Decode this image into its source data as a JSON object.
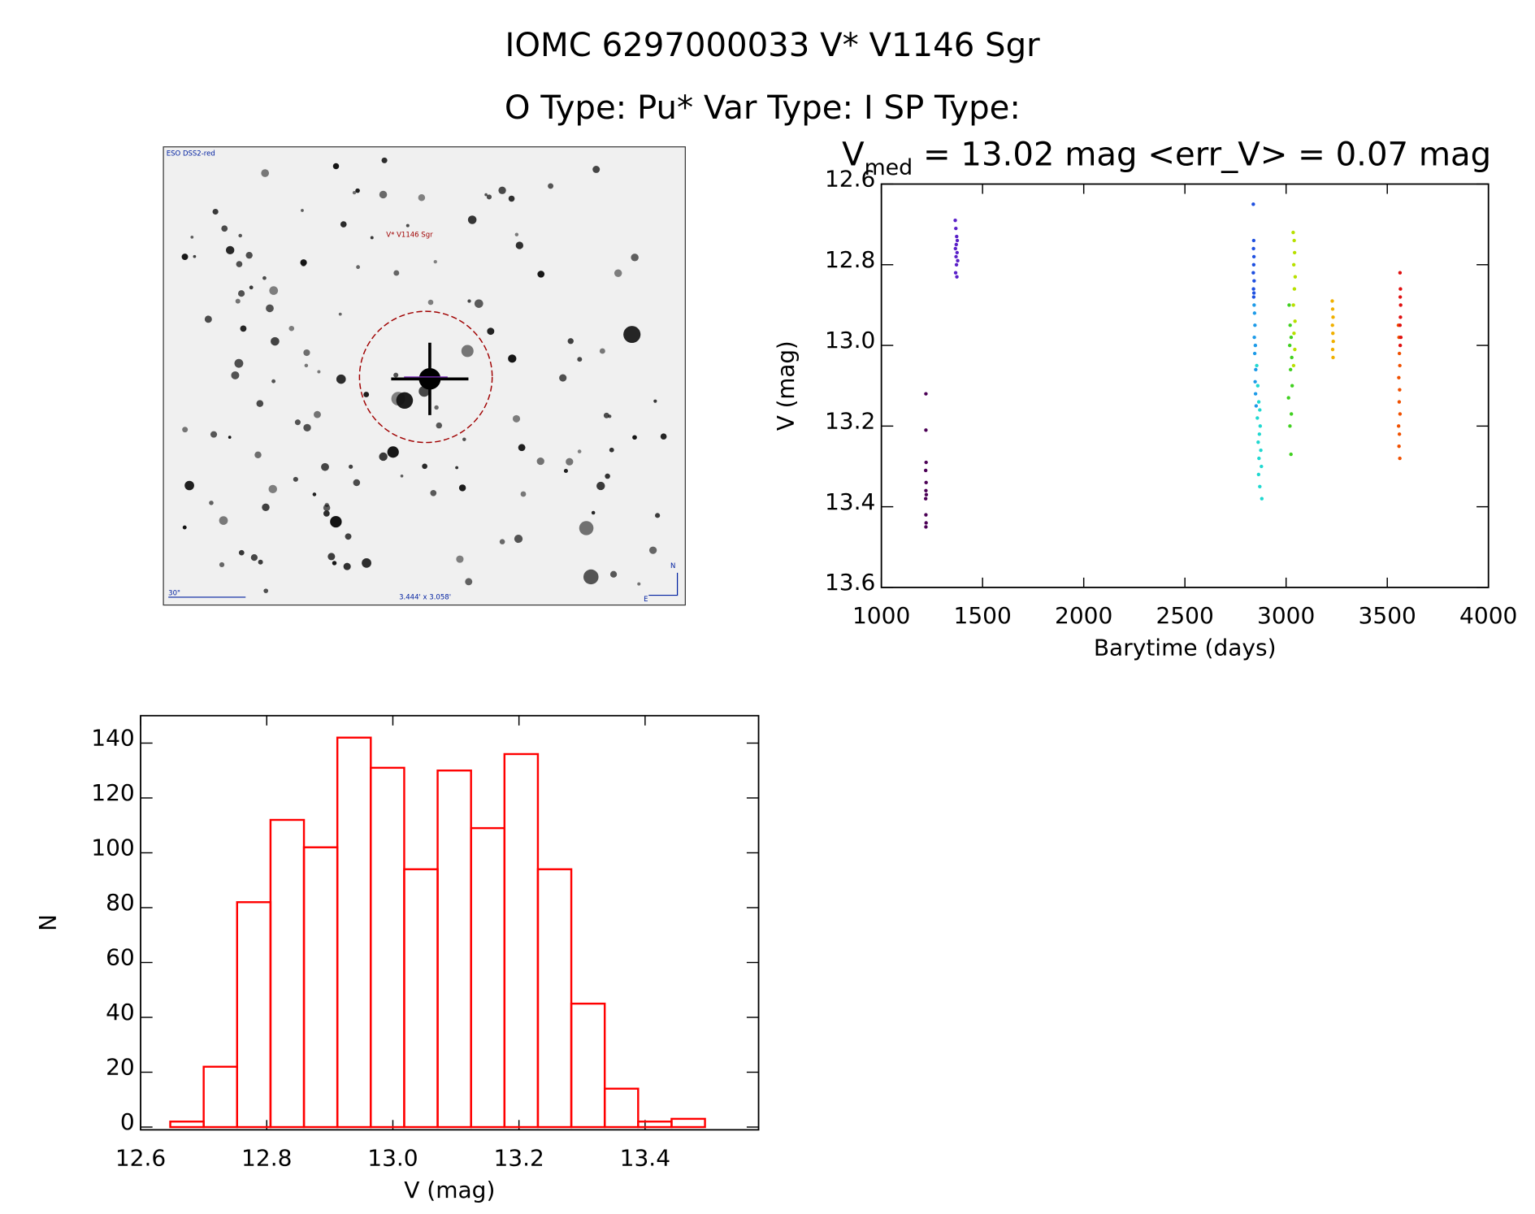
{
  "header": {
    "title": "IOMC 6297000033   V* V1146 Sgr",
    "subtitle": "O Type: Pu*  Var Type: I  SP Type:"
  },
  "image": {
    "survey": "ESO DSS2-red",
    "target": "V* V1146 Sgr",
    "scale": "30\"",
    "size": "3.444' x 3.058'",
    "north": "N",
    "east": "E"
  },
  "chart_data": [
    {
      "type": "scatter",
      "title_parts": [
        "V",
        "med",
        " = 13.02 mag <err_V> = 0.07 mag"
      ],
      "xlabel": "Barytime (days)",
      "ylabel": "V (mag)",
      "xlim": [
        1000,
        4000
      ],
      "xticks": [
        1000,
        1500,
        2000,
        2500,
        3000,
        3500,
        4000
      ],
      "ylim": [
        12.6,
        13.6
      ],
      "y_inverted": true,
      "yticks": [
        12.6,
        12.8,
        {
          "value": 13,
          "label": "13.0"
        },
        13.2,
        13.4,
        13.6
      ],
      "series": [
        {
          "color": "#4b0055",
          "x": [
            1220,
            1220,
            1221,
            1219,
            1221,
            1220,
            1222,
            1219,
            1220,
            1221,
            1220
          ],
          "values": [
            13.12,
            13.21,
            13.29,
            13.31,
            13.34,
            13.36,
            13.37,
            13.38,
            13.42,
            13.44,
            13.45
          ]
        },
        {
          "color": "#5a20c8",
          "x": [
            1365,
            1368,
            1372,
            1375,
            1370,
            1366,
            1374,
            1369,
            1377,
            1371,
            1367,
            1373
          ],
          "values": [
            12.69,
            12.71,
            12.73,
            12.74,
            12.75,
            12.76,
            12.77,
            12.78,
            12.79,
            12.8,
            12.82,
            12.83
          ]
        },
        {
          "color": "#1f50e0",
          "x": [
            2838,
            2840,
            2839,
            2841,
            2840,
            2838,
            2842,
            2839,
            2841,
            2840
          ],
          "values": [
            12.65,
            12.74,
            12.76,
            12.78,
            12.8,
            12.82,
            12.84,
            12.86,
            12.87,
            12.88
          ]
        },
        {
          "color": "#1e9be8",
          "x": [
            2842,
            2844,
            2846,
            2843,
            2848,
            2845,
            2850,
            2847,
            2849,
            2852
          ],
          "values": [
            12.9,
            12.92,
            12.95,
            12.98,
            13.0,
            13.02,
            13.06,
            13.09,
            13.12,
            13.15
          ]
        },
        {
          "color": "#20d8d0",
          "x": [
            2855,
            2860,
            2865,
            2870,
            2858,
            2872,
            2868,
            2862,
            2875,
            2866,
            2878,
            2864,
            2870,
            2880
          ],
          "values": [
            13.05,
            13.1,
            13.14,
            13.16,
            13.18,
            13.2,
            13.22,
            13.24,
            13.26,
            13.28,
            13.3,
            13.32,
            13.35,
            13.38
          ]
        },
        {
          "color": "#40d020",
          "x": [
            3015,
            3020,
            3025,
            3018,
            3028,
            3022,
            3030,
            3012,
            3026,
            3019,
            3024
          ],
          "values": [
            12.9,
            12.95,
            12.98,
            13.0,
            13.03,
            13.06,
            13.1,
            13.13,
            13.17,
            13.2,
            13.27
          ]
        },
        {
          "color": "#b8e000",
          "x": [
            3035,
            3040,
            3042,
            3038,
            3045,
            3041,
            3036,
            3044,
            3039,
            3043,
            3037
          ],
          "values": [
            12.72,
            12.74,
            12.77,
            12.8,
            12.83,
            12.86,
            12.9,
            12.94,
            12.97,
            13.01,
            13.05
          ]
        },
        {
          "color": "#f0b000",
          "x": [
            3228,
            3230,
            3232,
            3229,
            3231,
            3233,
            3230,
            3232
          ],
          "values": [
            12.89,
            12.91,
            12.93,
            12.95,
            12.97,
            12.99,
            13.01,
            13.03
          ]
        },
        {
          "color": "#f05000",
          "x": [
            3555,
            3558,
            3560,
            3562,
            3557,
            3561,
            3559,
            3563,
            3556,
            3560,
            3558,
            3562
          ],
          "values": [
            12.95,
            12.98,
            13.02,
            13.05,
            13.08,
            13.11,
            13.14,
            13.17,
            13.2,
            13.22,
            13.25,
            13.28
          ]
        },
        {
          "color": "#e01010",
          "x": [
            3563,
            3565,
            3564,
            3566,
            3565,
            3563,
            3567,
            3564
          ],
          "values": [
            12.82,
            12.86,
            12.88,
            12.9,
            12.93,
            12.95,
            12.98,
            13.0
          ]
        }
      ]
    },
    {
      "type": "histogram",
      "xlabel": "V (mag)",
      "ylabel": "N",
      "color": "#ff0000",
      "bins": [
        12.647,
        12.7,
        12.753,
        12.806,
        12.859,
        12.912,
        12.965,
        13.018,
        13.071,
        13.124,
        13.177,
        13.23,
        13.283,
        13.336,
        13.389,
        13.442,
        13.495
      ],
      "values": [
        2,
        22,
        82,
        112,
        102,
        142,
        131,
        94,
        130,
        109,
        136,
        94,
        45,
        14,
        2,
        3
      ],
      "xlim": [
        12.6,
        13.58
      ],
      "xticks": [
        12.6,
        12.8,
        {
          "value": 13,
          "label": "13.0"
        },
        13.2,
        13.4
      ],
      "ylim": [
        -1,
        150
      ],
      "yticks": [
        0,
        20,
        40,
        60,
        80,
        100,
        120,
        140
      ]
    }
  ]
}
